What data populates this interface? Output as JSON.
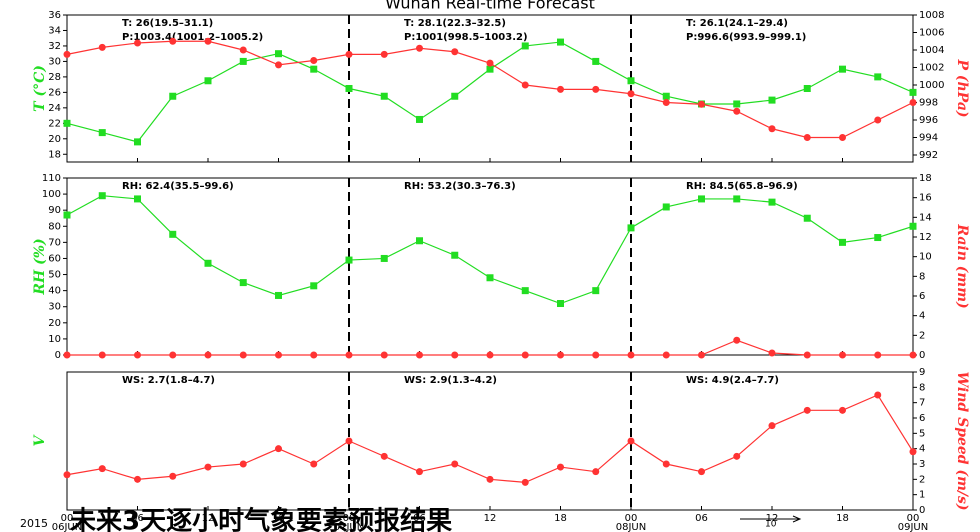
{
  "title": "Wuhan Real-time Forecast",
  "year": "2015",
  "footer": "未来3天逐小时气象要素预报结果",
  "wind_reference": "10",
  "chart_data": [
    {
      "type": "line",
      "ylabel": "T (°C)",
      "y2label": "P (hPa)",
      "xlim": [
        0,
        72
      ],
      "ylim": [
        17,
        36
      ],
      "yticks": [
        18,
        20,
        22,
        24,
        26,
        28,
        30,
        32,
        34,
        36
      ],
      "y2lim": [
        991.2,
        1008
      ],
      "y2ticks": [
        992,
        994,
        996,
        998,
        1000,
        1002,
        1004,
        1006,
        1008
      ],
      "x": [
        0,
        3,
        6,
        9,
        12,
        15,
        18,
        21,
        24,
        27,
        30,
        33,
        36,
        39,
        42,
        45,
        48,
        51,
        54,
        57,
        60,
        63,
        66,
        69,
        72
      ],
      "series": [
        {
          "color": "#22dd22",
          "marker": "square",
          "values": [
            22,
            20.8,
            19.6,
            25.5,
            27.5,
            30,
            31,
            29,
            26.5,
            25.5,
            22.5,
            25.5,
            29,
            32,
            32.5,
            30,
            27.5,
            25.5,
            24.5,
            24.5,
            25,
            26.5,
            29,
            28,
            26
          ]
        },
        {
          "color": "#ff3333",
          "marker": "circle",
          "axis": "y2",
          "values": [
            1003.5,
            1004.3,
            1004.8,
            1005,
            1005,
            1004,
            1002.3,
            1002.8,
            1003.5,
            1003.5,
            1004.2,
            1003.8,
            1002.5,
            1000,
            999.5,
            999.5,
            999,
            998,
            997.8,
            997,
            995,
            994,
            994,
            996,
            998
          ]
        }
      ],
      "annotations": [
        [
          "T: 26(19.5–31.1)",
          "P:1003.4(1001.2–1005.2)"
        ],
        [
          "T: 28.1(22.3–32.5)",
          "P:1001(998.5–1003.2)"
        ],
        [
          "T: 26.1(24.1–29.4)",
          "P:996.6(993.9–999.1)"
        ]
      ]
    },
    {
      "type": "line",
      "ylabel": "RH (%)",
      "y2label": "Rain (mm)",
      "xlim": [
        0,
        72
      ],
      "ylim": [
        0,
        110
      ],
      "yticks": [
        0,
        10,
        20,
        30,
        40,
        50,
        60,
        70,
        80,
        90,
        100,
        110
      ],
      "y2lim": [
        0,
        18
      ],
      "y2ticks": [
        0,
        2,
        4,
        6,
        8,
        10,
        12,
        14,
        16,
        18
      ],
      "x": [
        0,
        3,
        6,
        9,
        12,
        15,
        18,
        21,
        24,
        27,
        30,
        33,
        36,
        39,
        42,
        45,
        48,
        51,
        54,
        57,
        60,
        63,
        66,
        69,
        72
      ],
      "series": [
        {
          "color": "#22dd22",
          "marker": "square",
          "values": [
            87,
            99,
            97,
            75,
            57,
            45,
            37,
            43,
            59,
            60,
            71,
            62,
            48,
            40,
            32,
            40,
            79,
            92,
            97,
            97,
            95,
            85,
            70,
            73,
            80
          ]
        },
        {
          "color": "#ff3333",
          "marker": "circle",
          "axis": "y2",
          "values": [
            0,
            0,
            0,
            0,
            0,
            0,
            0,
            0,
            0,
            0,
            0,
            0,
            0,
            0,
            0,
            0,
            0,
            0,
            0,
            1.5,
            0.2,
            0,
            0,
            0,
            0
          ]
        }
      ],
      "annotations": [
        [
          "RH: 62.4(35.5–99.6)"
        ],
        [
          "RH: 53.2(30.3–76.3)"
        ],
        [
          "RH: 84.5(65.8–96.9)"
        ]
      ]
    },
    {
      "type": "line",
      "ylabel": "V",
      "y2label": "Wind Speed (m/s)",
      "xlim": [
        0,
        72
      ],
      "xticks": [
        {
          "value": 0,
          "label": "00"
        },
        {
          "value": 6,
          "label": "06"
        },
        {
          "value": 12,
          "label": "12"
        },
        {
          "value": 18,
          "label": "18"
        },
        {
          "value": 24,
          "label": "00"
        },
        {
          "value": 30,
          "label": "06"
        },
        {
          "value": 36,
          "label": "12"
        },
        {
          "value": 42,
          "label": "18"
        },
        {
          "value": 48,
          "label": "00"
        },
        {
          "value": 54,
          "label": "06"
        },
        {
          "value": 60,
          "label": "12"
        },
        {
          "value": 66,
          "label": "18"
        },
        {
          "value": 72,
          "label": "00"
        }
      ],
      "day_labels": [
        {
          "value": 0,
          "label": "06JUN"
        },
        {
          "value": 24,
          "label": "07JUN"
        },
        {
          "value": 48,
          "label": "08JUN"
        },
        {
          "value": 72,
          "label": "09JUN"
        }
      ],
      "y2lim": [
        0,
        9
      ],
      "y2ticks": [
        0,
        1,
        2,
        3,
        4,
        5,
        6,
        7,
        8,
        9
      ],
      "x": [
        0,
        3,
        6,
        9,
        12,
        15,
        18,
        21,
        24,
        27,
        30,
        33,
        36,
        39,
        42,
        45,
        48,
        51,
        54,
        57,
        60,
        63,
        66,
        69,
        72
      ],
      "series": [
        {
          "color": "#ff3333",
          "marker": "circle",
          "axis": "y2",
          "values": [
            2.3,
            2.7,
            2.0,
            2.2,
            2.8,
            3.0,
            4.0,
            3.0,
            4.5,
            3.5,
            2.5,
            3.0,
            2.0,
            1.8,
            2.8,
            2.5,
            4.5,
            3.0,
            2.5,
            3.5,
            5.5,
            6.5,
            6.5,
            7.5,
            3.8
          ]
        }
      ],
      "annotations": [
        [
          "WS: 2.7(1.8–4.7)"
        ],
        [
          "WS: 2.9(1.3–4.2)"
        ],
        [
          "WS: 4.9(2.4–7.7)"
        ]
      ]
    }
  ]
}
